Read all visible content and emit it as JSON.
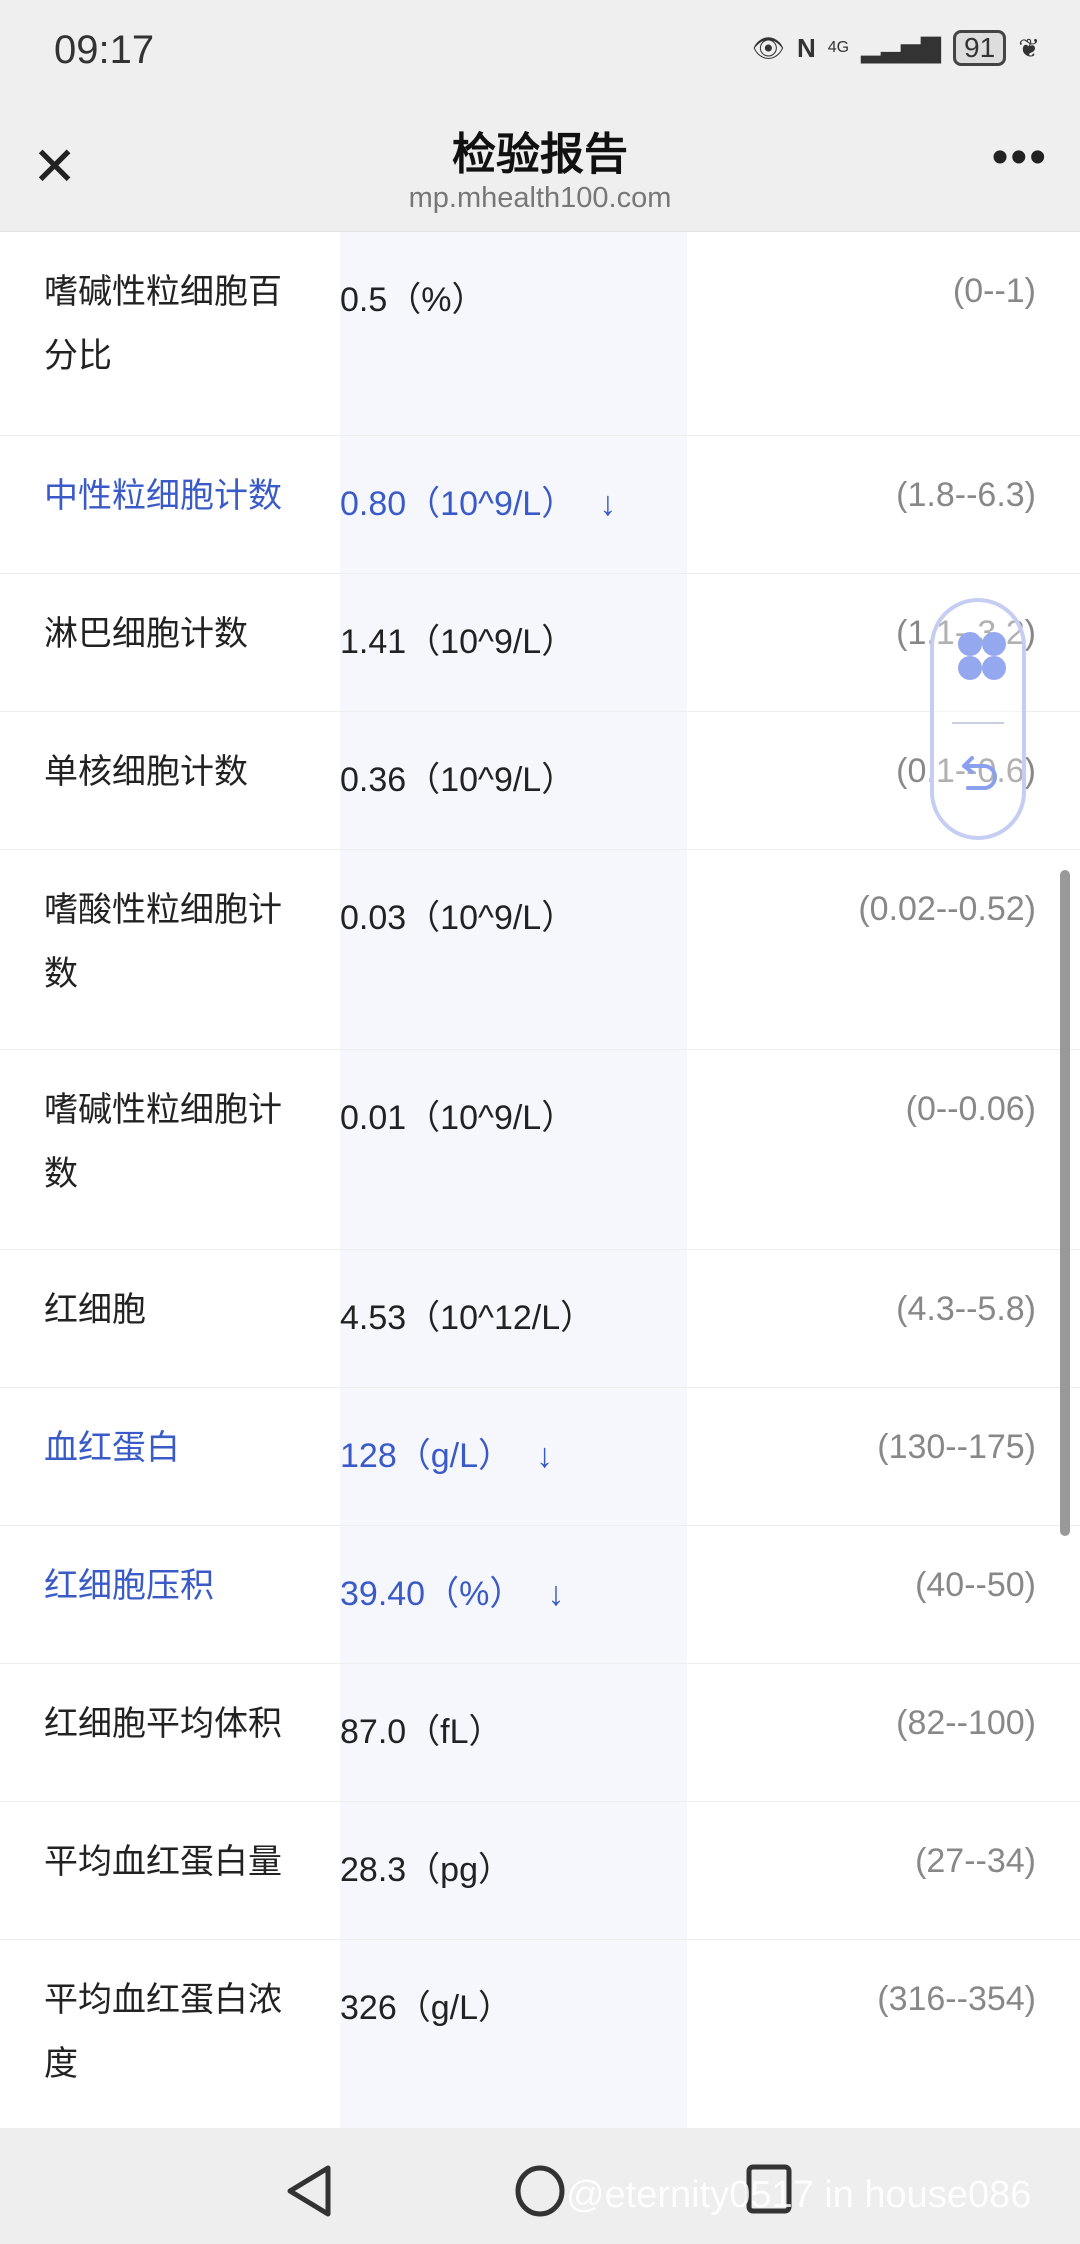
{
  "status_bar": {
    "time": "09:17",
    "battery": "91",
    "network": "4G",
    "icons": [
      "eye-icon",
      "nfc-icon",
      "signal-icon",
      "battery-icon",
      "leaf-icon"
    ]
  },
  "header": {
    "title": "检验报告",
    "url": "mp.mhealth100.com",
    "icons": [
      "close-icon",
      "more-icon"
    ]
  },
  "accent_color": "#3a5bc7",
  "rows": [
    {
      "name": "嗜碱性粒细胞百分比",
      "value": "0.5（%）",
      "flag": "",
      "range": "(0--1)"
    },
    {
      "name": "中性粒细胞计数",
      "value": "0.80（10^9/L）",
      "flag": "↓",
      "range": "(1.8--6.3)"
    },
    {
      "name": "淋巴细胞计数",
      "value": "1.41（10^9/L）",
      "flag": "",
      "range": "(1.1--3.2)"
    },
    {
      "name": "单核细胞计数",
      "value": "0.36（10^9/L）",
      "flag": "",
      "range": "(0.1--0.6)"
    },
    {
      "name": "嗜酸性粒细胞计数",
      "value": "0.03（10^9/L）",
      "flag": "",
      "range": "(0.02--0.52)"
    },
    {
      "name": "嗜碱性粒细胞计数",
      "value": "0.01（10^9/L）",
      "flag": "",
      "range": "(0--0.06)"
    },
    {
      "name": "红细胞",
      "value": "4.53（10^12/L）",
      "flag": "",
      "range": "(4.3--5.8)"
    },
    {
      "name": "血红蛋白",
      "value": "128（g/L）",
      "flag": "↓",
      "range": "(130--175)"
    },
    {
      "name": "红细胞压积",
      "value": "39.40（%）",
      "flag": "↓",
      "range": "(40--50)"
    },
    {
      "name": "红细胞平均体积",
      "value": "87.0（fL）",
      "flag": "",
      "range": "(82--100)"
    },
    {
      "name": "平均血红蛋白量",
      "value": "28.3（pg）",
      "flag": "",
      "range": "(27--34)"
    },
    {
      "name": "平均血红蛋白浓度",
      "value": "326（g/L）",
      "flag": "",
      "range": "(316--354)"
    }
  ],
  "watermark": "@eternity0517 in house086"
}
